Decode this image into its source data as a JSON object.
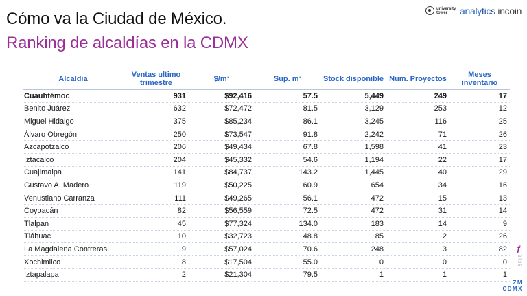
{
  "header": {
    "title": "Cómo va la Ciudad de México.",
    "subtitle": "Ranking de alcaldías en la CDMX"
  },
  "logos": {
    "university_tower": "university tower",
    "analytics_a": "analy",
    "analytics_b": "tics",
    "analytics_c": "incoin"
  },
  "table": {
    "headers": [
      "Alcaldía",
      "Ventas ultimo trimestre",
      "$/m²",
      "Sup. m²",
      "Stock disponible",
      "Num. Proyectos",
      "Meses inventario"
    ],
    "rows": [
      [
        "Cuauhtémoc",
        "931",
        "$92,416",
        "57.5",
        "5,449",
        "249",
        "17"
      ],
      [
        "Benito Juárez",
        "632",
        "$72,472",
        "81.5",
        "3,129",
        "253",
        "12"
      ],
      [
        "Miguel Hidalgo",
        "375",
        "$85,234",
        "86.1",
        "3,245",
        "116",
        "25"
      ],
      [
        "Álvaro Obregón",
        "250",
        "$73,547",
        "91.8",
        "2,242",
        "71",
        "26"
      ],
      [
        "Azcapotzalco",
        "206",
        "$49,434",
        "67.8",
        "1,598",
        "41",
        "23"
      ],
      [
        "Iztacalco",
        "204",
        "$45,332",
        "54.6",
        "1,194",
        "22",
        "17"
      ],
      [
        "Cuajimalpa",
        "141",
        "$84,737",
        "143.2",
        "1,445",
        "40",
        "29"
      ],
      [
        "Gustavo A. Madero",
        "119",
        "$50,225",
        "60.9",
        "654",
        "34",
        "16"
      ],
      [
        "Venustiano Carranza",
        "111",
        "$49,265",
        "56.1",
        "472",
        "15",
        "13"
      ],
      [
        "Coyoacán",
        "82",
        "$56,559",
        "72.5",
        "472",
        "31",
        "14"
      ],
      [
        "Tlalpan",
        "45",
        "$77,324",
        "134.0",
        "183",
        "14",
        "9"
      ],
      [
        "Tláhuac",
        "10",
        "$32,723",
        "48.8",
        "85",
        "2",
        "26"
      ],
      [
        "La Magdalena Contreras",
        "9",
        "$57,024",
        "70.6",
        "248",
        "3",
        "82"
      ],
      [
        "Xochimilco",
        "8",
        "$17,504",
        "55.0",
        "0",
        "0",
        "0"
      ],
      [
        "Iztapalapa",
        "2",
        "$21,304",
        "79.5",
        "1",
        "1",
        "1"
      ]
    ]
  },
  "side_badge": {
    "symbol": "ƒ",
    "text": "3T25"
  },
  "corner": {
    "line1": "ZM",
    "line2": "CDMX"
  }
}
